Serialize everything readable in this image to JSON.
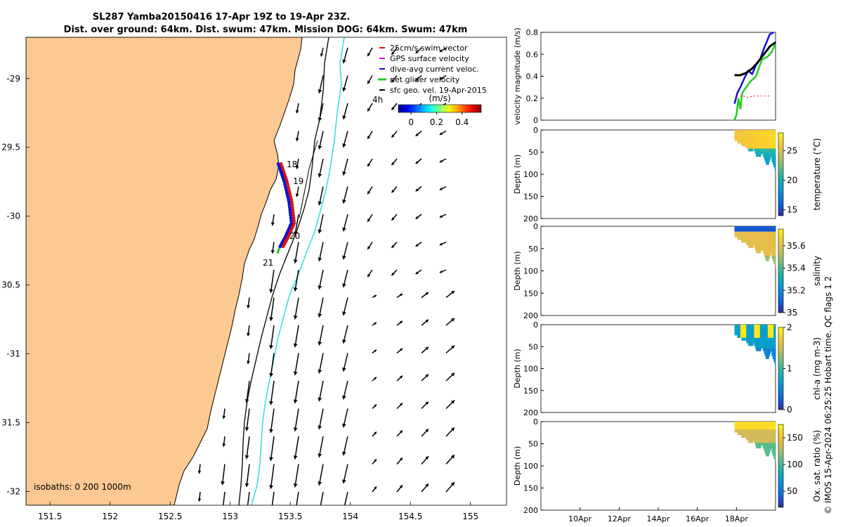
{
  "title_line1": "SL287 Yamba20150416 17-Apr 19Z to 19-Apr 23Z.",
  "title_line2": "Dist. over ground: 64km. Dist. swum: 47km. Mission DOG: 64km. Swum: 47km",
  "credit": "© IMOS 15-Apr-2024 06:25:25 Hobart time. QC flags 1  2",
  "colors": {
    "land": "#FCC993",
    "arrow": "#000000",
    "isobath_200": "#000000",
    "isobath_1000": "#33DDDD",
    "track_dive": "#1010D0",
    "track_swim": "#E01010",
    "track_net": "#20D020",
    "cbar_colormap": "parula"
  },
  "chart_data": [
    {
      "type": "scatter",
      "panel": "map",
      "xlim": [
        151.3,
        155.3
      ],
      "ylim": [
        -32.1,
        -28.7
      ],
      "xticks": [
        151.5,
        152,
        152.5,
        153,
        153.5,
        154,
        154.5,
        155
      ],
      "xtick_labels": [
        "151.5",
        "152",
        "152.5",
        "153",
        "153.5",
        "154",
        "154.5",
        "155"
      ],
      "yticks": [
        -29,
        -29.5,
        -30,
        -30.5,
        -31,
        -31.5,
        -32
      ],
      "ytick_labels": [
        "-29",
        "29.5",
        "-30",
        "30.5",
        "-31",
        "31.5",
        "-32"
      ],
      "legend": {
        "placement": "top-right",
        "entries": [
          {
            "label": "25cm/s swim vector",
            "color": "#E01010"
          },
          {
            "label": "GPS surface velocity",
            "color": "#E010E0"
          },
          {
            "label": "dive-avg current veloc.",
            "color": "#1010D0"
          },
          {
            "label": "net glider velocity",
            "color": "#20D020"
          },
          {
            "label": "sfc geo. vel. 19-Apr-2015",
            "color": "#000000"
          }
        ]
      },
      "annotations": [
        {
          "text": "4h",
          "lon": 154.2,
          "lat": -29.18
        },
        {
          "text": "18",
          "lon": 153.5,
          "lat": -29.63
        },
        {
          "text": "19",
          "lon": 153.55,
          "lat": -29.76
        },
        {
          "text": "20",
          "lon": 153.53,
          "lat": -30.17
        },
        {
          "text": "21",
          "lon": 153.2,
          "lat": -30.36
        }
      ],
      "isobath_label": "isobaths: 0   200  1000m",
      "colorbar": {
        "label": "(m/s)",
        "ticks": [
          0,
          0.2,
          0.4
        ],
        "tick_labels": [
          "0",
          "0.2",
          "0.4"
        ],
        "range": [
          -0.1,
          0.55
        ]
      },
      "track": [
        {
          "lon": 153.4,
          "lat": -29.62
        },
        {
          "lon": 153.45,
          "lat": -29.75
        },
        {
          "lon": 153.49,
          "lat": -29.9
        },
        {
          "lon": 153.51,
          "lat": -30.05
        },
        {
          "lon": 153.46,
          "lat": -30.15
        },
        {
          "lon": 153.41,
          "lat": -30.23
        }
      ],
      "grid_u_field": "southward flow (~0.4 m/s) near shelf break west of 154.3E, weaker eddy-like field to the east with northeastward vectors south of 31S"
    },
    {
      "type": "line",
      "panel": "velocity",
      "ylabel": "velocity magnitude (m/s)",
      "ylim": [
        0,
        0.8
      ],
      "yticks": [
        0,
        0.2,
        0.4,
        0.6,
        0.8
      ],
      "ytick_labels": [
        "0",
        "0.2",
        "0.4",
        "0.6",
        "0.8"
      ],
      "x_dates": [
        "8Apr",
        "20Apr"
      ],
      "series": [
        {
          "color": "#20D020",
          "x_days": [
            17.9,
            18.0,
            18.1,
            18.2,
            18.3,
            18.5,
            18.7,
            19.0,
            19.3,
            19.6,
            19.8,
            20.0
          ],
          "values": [
            0.0,
            0.05,
            0.2,
            0.1,
            0.25,
            0.3,
            0.35,
            0.4,
            0.55,
            0.58,
            0.62,
            0.7
          ]
        },
        {
          "color": "#1010D0",
          "x_days": [
            17.9,
            18.05,
            18.2,
            18.4,
            18.6,
            18.8,
            19.0,
            19.2,
            19.4,
            19.7,
            19.9
          ],
          "values": [
            0.15,
            0.25,
            0.3,
            0.38,
            0.45,
            0.42,
            0.5,
            0.55,
            0.65,
            0.78,
            0.8
          ]
        },
        {
          "color": "#000000",
          "x_days": [
            17.9,
            18.2,
            18.5,
            18.8,
            19.1,
            19.4,
            19.7,
            20.0
          ],
          "values": [
            0.41,
            0.41,
            0.43,
            0.47,
            0.53,
            0.6,
            0.67,
            0.71
          ]
        },
        {
          "color": "#E01010",
          "x_days": [
            18.0,
            18.3,
            18.6,
            18.9,
            19.2,
            19.5,
            19.8
          ],
          "values": [
            0.22,
            0.22,
            0.21,
            0.22,
            0.22,
            0.22,
            0.22
          ]
        }
      ]
    },
    {
      "type": "heatmap",
      "panel": "temperature",
      "ylabel": "Depth (m)",
      "cbar_label": "temperature (°C)",
      "ylim": [
        200,
        0
      ],
      "yticks": [
        0,
        50,
        100,
        150,
        200
      ],
      "ytick_labels": [
        "0",
        "50",
        "100",
        "150",
        "200"
      ],
      "cbar_ticks": [
        15,
        20,
        25
      ],
      "cbar_tick_labels": [
        "15",
        "20",
        "25"
      ],
      "cbar_range": [
        14,
        28
      ],
      "x_days": [
        17.9,
        20.0
      ]
    },
    {
      "type": "heatmap",
      "panel": "salinity",
      "ylabel": "Depth (m)",
      "cbar_label": "salinity",
      "ylim": [
        200,
        0
      ],
      "yticks": [
        0,
        50,
        100,
        150,
        200
      ],
      "ytick_labels": [
        "0",
        "50",
        "100",
        "150",
        "200"
      ],
      "cbar_ticks": [
        35,
        35.2,
        35.4,
        35.6
      ],
      "cbar_tick_labels": [
        "35",
        "35.2",
        "35.4",
        "35.6"
      ],
      "cbar_range": [
        35,
        35.75
      ],
      "x_days": [
        17.9,
        20.0
      ]
    },
    {
      "type": "heatmap",
      "panel": "chl",
      "ylabel": "Depth (m)",
      "cbar_label": "chl-a (mg m-3)",
      "ylim": [
        200,
        0
      ],
      "yticks": [
        0,
        50,
        100,
        150,
        200
      ],
      "ytick_labels": [
        "0",
        "50",
        "100",
        "150",
        "200"
      ],
      "cbar_ticks": [
        0,
        1,
        2
      ],
      "cbar_tick_labels": [
        "0",
        "1",
        "2"
      ],
      "cbar_range": [
        0,
        2
      ],
      "x_days": [
        17.9,
        20.0
      ]
    },
    {
      "type": "heatmap",
      "panel": "oxygen",
      "ylabel": "Depth (m)",
      "cbar_label": "Ox. sat. ratio (%)",
      "ylim": [
        200,
        0
      ],
      "yticks": [
        0,
        50,
        100,
        150,
        200
      ],
      "ytick_labels": [
        "0",
        "50",
        "100",
        "150",
        "200"
      ],
      "cbar_ticks": [
        50,
        100,
        150
      ],
      "cbar_tick_labels": [
        "50",
        "100",
        "150"
      ],
      "cbar_range": [
        20,
        175
      ],
      "x_days": [
        17.9,
        20.0
      ],
      "xtick_labels": [
        "10Apr",
        "12Apr",
        "14Apr",
        "16Apr",
        "18Apr"
      ],
      "xtick_days": [
        10,
        12,
        14,
        16,
        18
      ]
    }
  ]
}
